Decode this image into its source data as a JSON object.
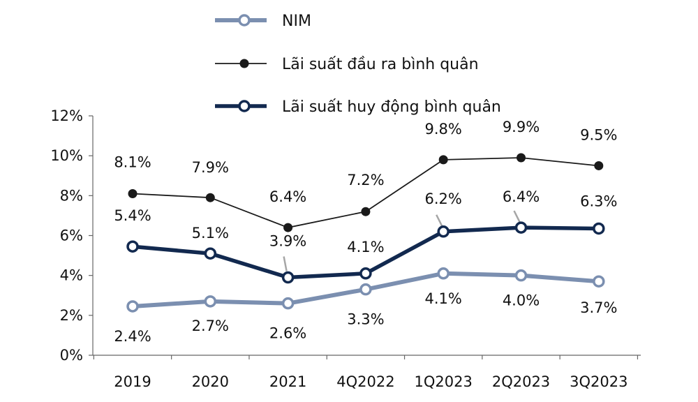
{
  "chart_data": {
    "type": "line",
    "categories": [
      "2019",
      "2020",
      "2021",
      "4Q2022",
      "1Q2023",
      "2Q2023",
      "3Q2023"
    ],
    "ylim": [
      0,
      12
    ],
    "yticks": [
      "0%",
      "2%",
      "4%",
      "6%",
      "8%",
      "10%",
      "12%"
    ],
    "yticks_values": [
      0,
      2,
      4,
      6,
      8,
      10,
      12
    ],
    "grid": false,
    "legend_placement": "top-center",
    "series": [
      {
        "name": "NIM",
        "values": [
          2.45,
          2.7,
          2.6,
          3.3,
          4.1,
          4.0,
          3.7
        ],
        "labels": [
          "2.4%",
          "2.7%",
          "2.6%",
          "3.3%",
          "4.1%",
          "4.0%",
          "3.7%"
        ],
        "color": "#7b8fb0",
        "marker": "hollow-circle"
      },
      {
        "name": "Lãi suất đầu ra bình quân",
        "values": [
          8.1,
          7.9,
          6.4,
          7.2,
          9.8,
          9.9,
          9.5
        ],
        "labels": [
          "8.1%",
          "7.9%",
          "6.4%",
          "7.2%",
          "9.8%",
          "9.9%",
          "9.5%"
        ],
        "color": "#1a1a1a",
        "marker": "filled-circle"
      },
      {
        "name": "Lãi suất huy động bình quân",
        "values": [
          5.45,
          5.1,
          3.9,
          4.1,
          6.2,
          6.4,
          6.35
        ],
        "labels": [
          "5.4%",
          "5.1%",
          "3.9%",
          "4.1%",
          "6.2%",
          "6.4%",
          "6.3%"
        ],
        "color": "#12294f",
        "marker": "hollow-circle"
      }
    ]
  }
}
